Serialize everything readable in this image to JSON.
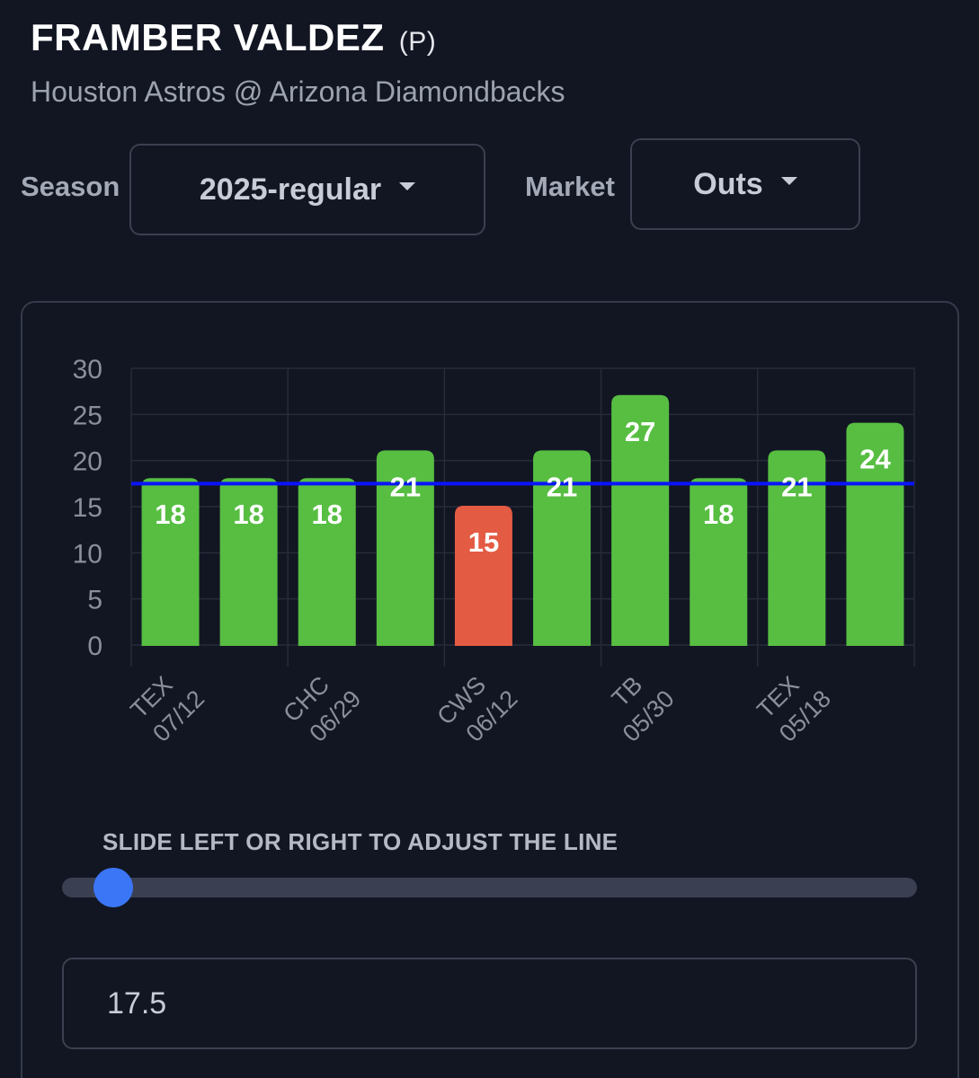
{
  "header": {
    "player_name": "FRAMBER VALDEZ",
    "position": "(P)",
    "matchup": "Houston Astros @ Arizona Diamondbacks"
  },
  "filters": {
    "season_label": "Season",
    "season_value": "2025-regular",
    "market_label": "Market",
    "market_value": "Outs"
  },
  "chart_data": {
    "type": "bar",
    "categories": [
      "TEX 07/12",
      "",
      "CHC 06/29",
      "",
      "CWS 06/12",
      "",
      "TB 05/30",
      "",
      "TEX 05/18",
      ""
    ],
    "x_tick_labels": [
      {
        "team": "TEX",
        "date": "07/12"
      },
      {
        "team": "CHC",
        "date": "06/29"
      },
      {
        "team": "CWS",
        "date": "06/12"
      },
      {
        "team": "TB",
        "date": "05/30"
      },
      {
        "team": "TEX",
        "date": "05/18"
      }
    ],
    "values": [
      18,
      18,
      18,
      21,
      15,
      21,
      27,
      18,
      21,
      24
    ],
    "ylim": [
      0,
      30
    ],
    "yticks": [
      0,
      5,
      10,
      15,
      20,
      25,
      30
    ],
    "line_value": 17.5,
    "colors": {
      "over": "#57be42",
      "under": "#e45b43",
      "line": "#0a14ff",
      "grid": "#262b3a",
      "tick_text": "#8a8f9c",
      "bar_label": "#ffffff"
    },
    "grid": true
  },
  "slider": {
    "caption": "SLIDE LEFT OR RIGHT TO ADJUST THE LINE",
    "value": 17.5,
    "position_fraction": 0.06,
    "accent": "#3b76f6"
  },
  "line_input": {
    "value": "17.5"
  }
}
